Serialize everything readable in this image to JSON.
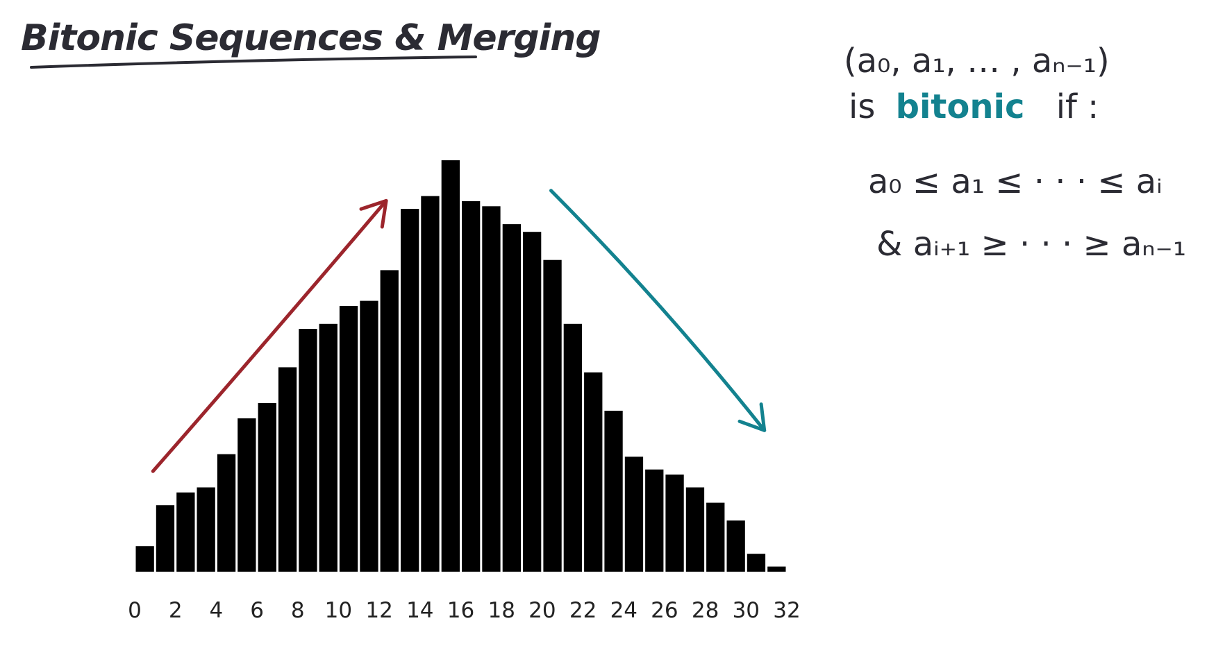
{
  "title": "Bitonic Sequences & Merging",
  "definition": {
    "sequence": "(a₀, a₁, … , aₙ₋₁)",
    "is_prefix": "is",
    "keyword": "bitonic",
    "if_suffix": "if :",
    "condition_increasing": "a₀ ≤ a₁ ≤ · · · ≤ aᵢ",
    "condition_decreasing": "& aᵢ₊₁ ≥ · · · ≥ aₙ₋₁"
  },
  "colors": {
    "bars": "#000000",
    "increasing_arrow": "#9c252c",
    "decreasing_arrow": "#13828f",
    "text": "#2b2b33",
    "accent_text": "#13828f"
  },
  "chart_data": {
    "type": "bar",
    "x": [
      0,
      1,
      2,
      3,
      4,
      5,
      6,
      7,
      8,
      9,
      10,
      11,
      12,
      13,
      14,
      15,
      16,
      17,
      18,
      19,
      20,
      21,
      22,
      23,
      24,
      25,
      26,
      27,
      28,
      29,
      30,
      31
    ],
    "values": [
      5,
      13,
      15.5,
      16.5,
      23,
      30,
      33,
      40,
      47.5,
      48.5,
      52,
      53,
      59,
      71,
      73.5,
      80.5,
      72.5,
      71.5,
      68,
      66.5,
      61,
      48.5,
      39,
      31.5,
      22.5,
      20,
      19,
      16.5,
      13.5,
      10,
      3.5,
      1
    ],
    "xticks": [
      0,
      2,
      4,
      6,
      8,
      10,
      12,
      14,
      16,
      18,
      20,
      22,
      24,
      26,
      28,
      30,
      32
    ],
    "xlim": [
      0,
      32
    ],
    "ylim": [
      0,
      82
    ],
    "grid": false,
    "legend": "none",
    "annotations": [
      {
        "kind": "arrow",
        "direction": "up",
        "from_x": 1,
        "to_x": 12,
        "color": "#9c252c"
      },
      {
        "kind": "arrow",
        "direction": "down",
        "from_x": 20.5,
        "to_x": 31,
        "color": "#13828f"
      }
    ]
  }
}
